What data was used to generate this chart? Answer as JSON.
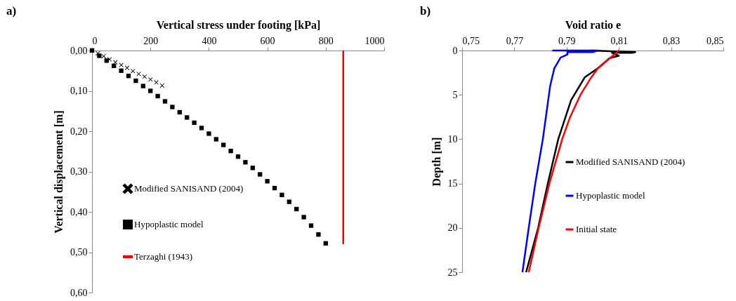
{
  "chart_data": [
    {
      "type": "scatter",
      "title": "a)",
      "xlabel": "Vertical stress under footing [kPa]",
      "ylabel": "Vertical displacement [m]",
      "xlim": [
        0,
        1000
      ],
      "xticks": [
        0,
        200,
        400,
        600,
        800,
        1000
      ],
      "ylim": [
        0.6,
        0
      ],
      "yticks": [
        {
          "value": 0,
          "label": "0,00"
        },
        {
          "value": 0.1,
          "label": "0,10"
        },
        {
          "value": 0.2,
          "label": "0,20"
        },
        {
          "value": 0.3,
          "label": "0,30"
        },
        {
          "value": 0.4,
          "label": "0,40"
        },
        {
          "value": 0.5,
          "label": "0,50"
        },
        {
          "value": 0.6,
          "label": "0,60"
        }
      ],
      "grid": false,
      "legend": "bottom left",
      "series": [
        {
          "name": "Modified SANISAND (2004)",
          "color": "#000000",
          "marker": "cross",
          "x": [
            0,
            20,
            40,
            60,
            80,
            100,
            120,
            140,
            160,
            180,
            200,
            220,
            240
          ],
          "values": [
            0,
            0.007,
            0.014,
            0.022,
            0.029,
            0.036,
            0.043,
            0.051,
            0.058,
            0.065,
            0.072,
            0.079,
            0.087
          ]
        },
        {
          "name": "Hypoplastic model",
          "color": "#000000",
          "marker": "square",
          "x": [
            0,
            25,
            50,
            75,
            100,
            125,
            150,
            175,
            200,
            225,
            250,
            275,
            300,
            325,
            350,
            375,
            400,
            425,
            450,
            475,
            500,
            525,
            550,
            575,
            600,
            625,
            650,
            675,
            700,
            725,
            750,
            775,
            800
          ],
          "values": [
            0,
            0.013,
            0.025,
            0.038,
            0.05,
            0.063,
            0.075,
            0.088,
            0.1,
            0.113,
            0.126,
            0.14,
            0.153,
            0.166,
            0.179,
            0.192,
            0.206,
            0.22,
            0.234,
            0.249,
            0.263,
            0.277,
            0.291,
            0.307,
            0.324,
            0.341,
            0.358,
            0.375,
            0.393,
            0.413,
            0.434,
            0.456,
            0.478
          ]
        },
        {
          "name": "Terzaghi (1943)",
          "color": "#ff0000",
          "type": "line",
          "x": [
            860,
            860
          ],
          "values": [
            0,
            0.48
          ]
        }
      ]
    },
    {
      "type": "line",
      "title": "b)",
      "xlabel": "Void ratio e",
      "ylabel": "Depth [m]",
      "xlim": [
        0.75,
        0.85
      ],
      "xticks": [
        {
          "value": 0.75,
          "label": "0,75"
        },
        {
          "value": 0.77,
          "label": "0,77"
        },
        {
          "value": 0.79,
          "label": "0,79"
        },
        {
          "value": 0.81,
          "label": "0,81"
        },
        {
          "value": 0.83,
          "label": "0,83"
        },
        {
          "value": 0.85,
          "label": "0,85"
        }
      ],
      "ylim": [
        25,
        0
      ],
      "yticks": [
        0,
        5,
        10,
        15,
        20,
        25
      ],
      "grid": false,
      "legend": "bottom right",
      "series": [
        {
          "name": "Modified SANISAND (2004)",
          "color": "#000000",
          "x": [
            0.7993,
            0.8163,
            0.8154,
            0.8073,
            0.81,
            0.8065,
            0.802,
            0.797,
            0.7917,
            0.7868,
            0.7828,
            0.7791,
            0.7745
          ],
          "values": [
            0,
            0.18,
            0.25,
            0.25,
            0.6,
            0.85,
            2,
            3,
            5.6,
            10,
            15,
            20,
            25
          ]
        },
        {
          "name": "Hypoplastic model",
          "color": "#0000ff",
          "x": [
            0.7845,
            0.8018,
            0.8,
            0.7903,
            0.7903,
            0.7877,
            0.7853,
            0.7837,
            0.7823,
            0.7809,
            0.778,
            0.7755,
            0.7731
          ],
          "values": [
            0,
            0,
            0.18,
            0.18,
            0.45,
            0.8,
            2,
            4,
            7,
            10,
            15,
            20,
            25
          ]
        },
        {
          "name": "Initial state",
          "color": "#ff0000",
          "x": [
            0.81,
            0.806,
            0.802,
            0.7995,
            0.7953,
            0.7912,
            0.7883,
            0.7834,
            0.7793,
            0.7755
          ],
          "values": [
            0,
            1,
            2,
            3,
            5,
            7.6,
            10,
            15,
            20,
            25
          ]
        }
      ]
    }
  ]
}
